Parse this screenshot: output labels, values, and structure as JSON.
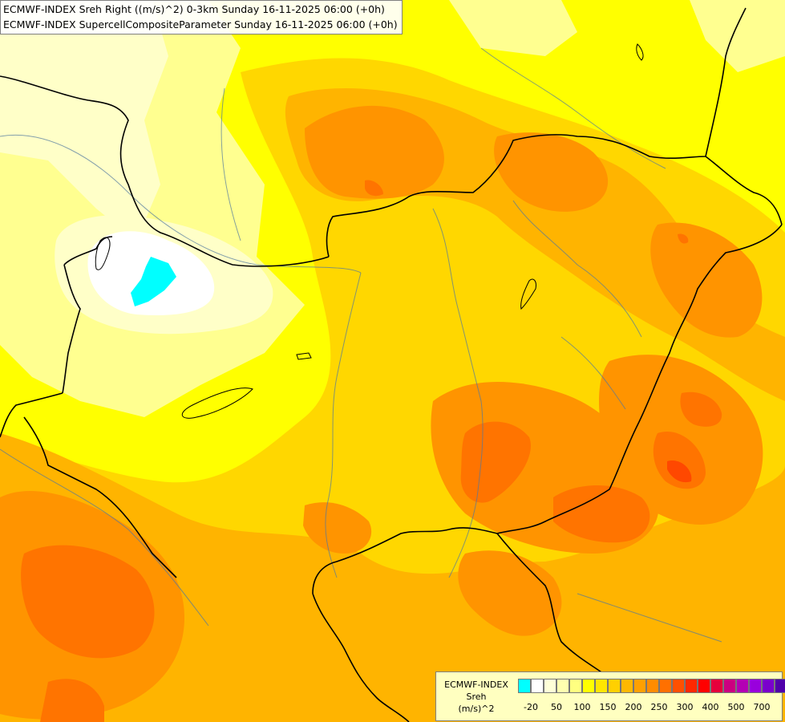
{
  "header": {
    "line1": "ECMWF-INDEX Sreh Right ((m/s)^2) 0-3km Sunday 16-11-2025 06:00 (+0h)",
    "line2": "ECMWF-INDEX SupercellCompositeParameter Sunday 16-11-2025 06:00 (+0h)"
  },
  "legend": {
    "source": "ECMWF-INDEX",
    "param": "Sreh",
    "unit": "(m/s)^2",
    "ticks": [
      "-20",
      "50",
      "100",
      "150",
      "200",
      "250",
      "300",
      "400",
      "500",
      "700"
    ],
    "colors": [
      "#00ffff",
      "#ffffff",
      "#ffffd8",
      "#ffffb0",
      "#ffff80",
      "#ffff00",
      "#ffe600",
      "#ffd000",
      "#ffb800",
      "#ffa000",
      "#ff8c00",
      "#ff7000",
      "#ff5000",
      "#ff2800",
      "#ff0000",
      "#e6003c",
      "#cc0080",
      "#b400b4",
      "#9900dd",
      "#7a00cc",
      "#5000aa",
      "#2a0090",
      "#000080"
    ]
  },
  "map": {
    "field_colors": {
      "very_low": "#00ffff",
      "low_white": "#ffffff",
      "pale": "#ffffc8",
      "light": "#ffff90",
      "yellow": "#ffff00",
      "gold": "#ffd700",
      "amber": "#ffb400",
      "orange": "#ff9400",
      "dark_orange": "#ff7400",
      "red_orange": "#ff4800"
    },
    "border_color": "#000000",
    "river_color": "#5078a0"
  }
}
